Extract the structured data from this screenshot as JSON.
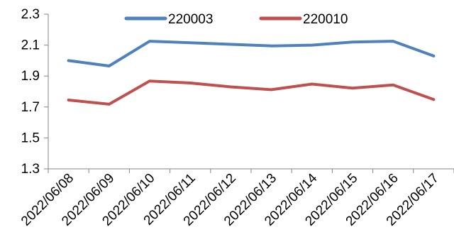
{
  "chart_data": {
    "type": "line",
    "title": "",
    "xlabel": "",
    "ylabel": "",
    "categories": [
      "2022/06/08",
      "2022/06/09",
      "2022/06/10",
      "2022/06/11",
      "2022/06/12",
      "2022/06/13",
      "2022/06/14",
      "2022/06/15",
      "2022/06/16",
      "2022/06/17"
    ],
    "ylim": [
      1.3,
      2.3
    ],
    "yticks": [
      "1.3",
      "1.5",
      "1.7",
      "1.9",
      "2.1",
      "2.3"
    ],
    "grid": false,
    "legend": "top",
    "series": [
      {
        "name": "220003",
        "color": "#4f81bd",
        "values": [
          2.0,
          1.965,
          2.125,
          2.115,
          2.105,
          2.095,
          2.1,
          2.12,
          2.125,
          2.03
        ]
      },
      {
        "name": "220010",
        "color": "#c0504d",
        "values": [
          1.745,
          1.718,
          1.868,
          1.855,
          1.83,
          1.812,
          1.848,
          1.822,
          1.842,
          1.748
        ]
      }
    ]
  }
}
